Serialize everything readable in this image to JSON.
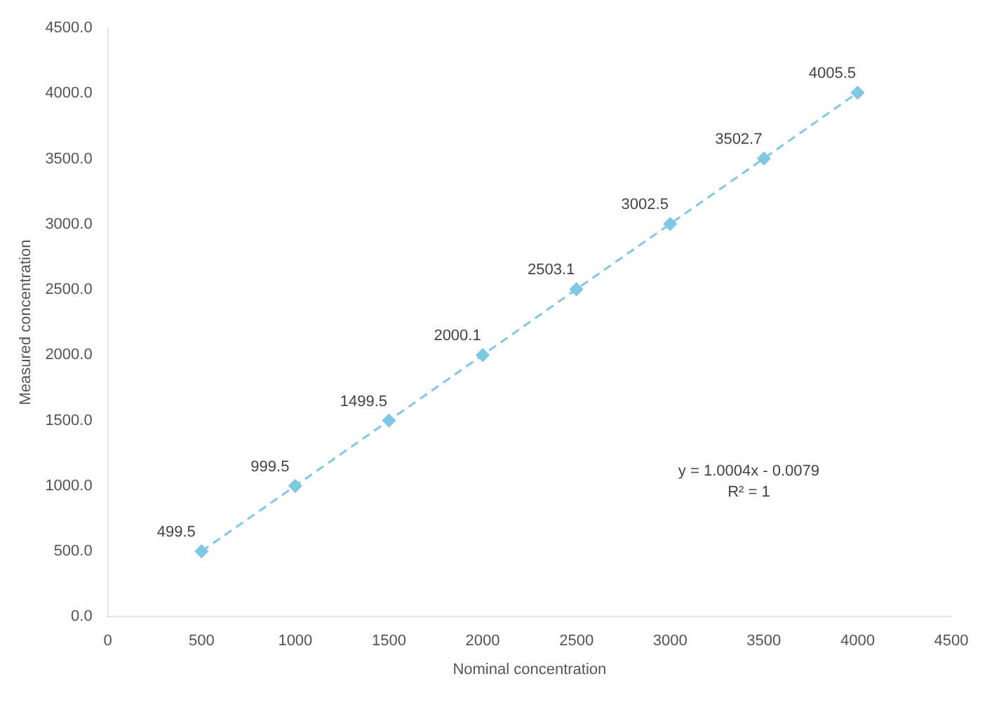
{
  "chart_data": {
    "type": "line",
    "xlabel": "Nominal concentration",
    "ylabel": "Measured concentration",
    "x": [
      500,
      1000,
      1500,
      2000,
      2500,
      3000,
      3500,
      4000
    ],
    "series": [
      {
        "color": "#7ec8e3",
        "values": [
          499.5,
          999.5,
          1499.5,
          2000.1,
          2503.1,
          3002.5,
          3502.7,
          4005.5
        ]
      }
    ],
    "xlim": [
      0,
      4500
    ],
    "xticks": [
      0,
      500,
      1000,
      1500,
      2000,
      2500,
      3000,
      3500,
      4000,
      4500
    ],
    "ylim": [
      0,
      4500
    ],
    "yticks": [
      {
        "value": 0,
        "label": "0.0"
      },
      {
        "value": 500,
        "label": "500.0"
      },
      {
        "value": 1000,
        "label": "1000.0"
      },
      {
        "value": 1500,
        "label": "1500.0"
      },
      {
        "value": 2000,
        "label": "2000.0"
      },
      {
        "value": 2500,
        "label": "2500.0"
      },
      {
        "value": 3000,
        "label": "3000.0"
      },
      {
        "value": 3500,
        "label": "3500.0"
      },
      {
        "value": 4000,
        "label": "4000.0"
      },
      {
        "value": 4500,
        "label": "4500.0"
      }
    ],
    "data_labels": true,
    "grid": false,
    "legend": false,
    "marker": "diamond",
    "line_style": "dashed",
    "annotations": [
      "y = 1.0004x - 0.0079",
      "R² = 1"
    ]
  }
}
